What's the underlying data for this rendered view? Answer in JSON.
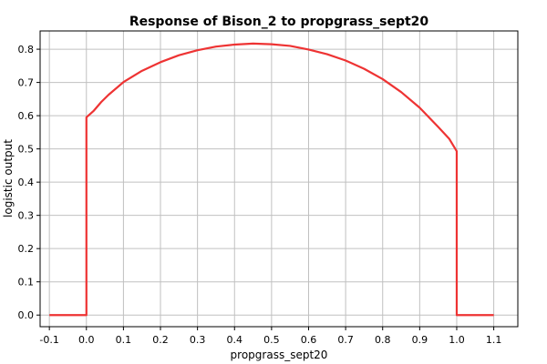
{
  "chart_data": {
    "type": "line",
    "title": "Response of Bison_2 to propgrass_sept20",
    "xlabel": "propgrass_sept20",
    "ylabel": "logistic output",
    "xlim": [
      -0.125,
      1.165
    ],
    "ylim": [
      -0.035,
      0.855
    ],
    "xticks": [
      -0.1,
      0.0,
      0.1,
      0.2,
      0.3,
      0.4,
      0.5,
      0.6,
      0.7,
      0.8,
      0.9,
      1.0,
      1.1
    ],
    "xtick_labels": [
      "-0.1",
      "0.0",
      "0.1",
      "0.2",
      "0.3",
      "0.4",
      "0.5",
      "0.6",
      "0.7",
      "0.8",
      "0.9",
      "1.0",
      "1.1"
    ],
    "yticks": [
      0.0,
      0.1,
      0.2,
      0.3,
      0.4,
      0.5,
      0.6,
      0.7,
      0.8
    ],
    "ytick_labels": [
      "0.0",
      "0.1",
      "0.2",
      "0.3",
      "0.4",
      "0.5",
      "0.6",
      "0.7",
      "0.8"
    ],
    "grid": true,
    "legend": "none",
    "series": [
      {
        "color": "#ee3333",
        "points": [
          [
            -0.1,
            0.0
          ],
          [
            0.0,
            0.0
          ],
          [
            0.0,
            0.595
          ],
          [
            0.01,
            0.605
          ],
          [
            0.02,
            0.615
          ],
          [
            0.04,
            0.641
          ],
          [
            0.06,
            0.663
          ],
          [
            0.1,
            0.701
          ],
          [
            0.15,
            0.735
          ],
          [
            0.2,
            0.761
          ],
          [
            0.25,
            0.782
          ],
          [
            0.3,
            0.797
          ],
          [
            0.35,
            0.808
          ],
          [
            0.4,
            0.814
          ],
          [
            0.45,
            0.817
          ],
          [
            0.5,
            0.815
          ],
          [
            0.55,
            0.81
          ],
          [
            0.6,
            0.799
          ],
          [
            0.65,
            0.785
          ],
          [
            0.7,
            0.766
          ],
          [
            0.75,
            0.741
          ],
          [
            0.8,
            0.71
          ],
          [
            0.85,
            0.671
          ],
          [
            0.9,
            0.624
          ],
          [
            0.95,
            0.566
          ],
          [
            0.98,
            0.53
          ],
          [
            1.0,
            0.493
          ],
          [
            1.0,
            0.0
          ],
          [
            1.1,
            0.0
          ]
        ]
      }
    ]
  }
}
